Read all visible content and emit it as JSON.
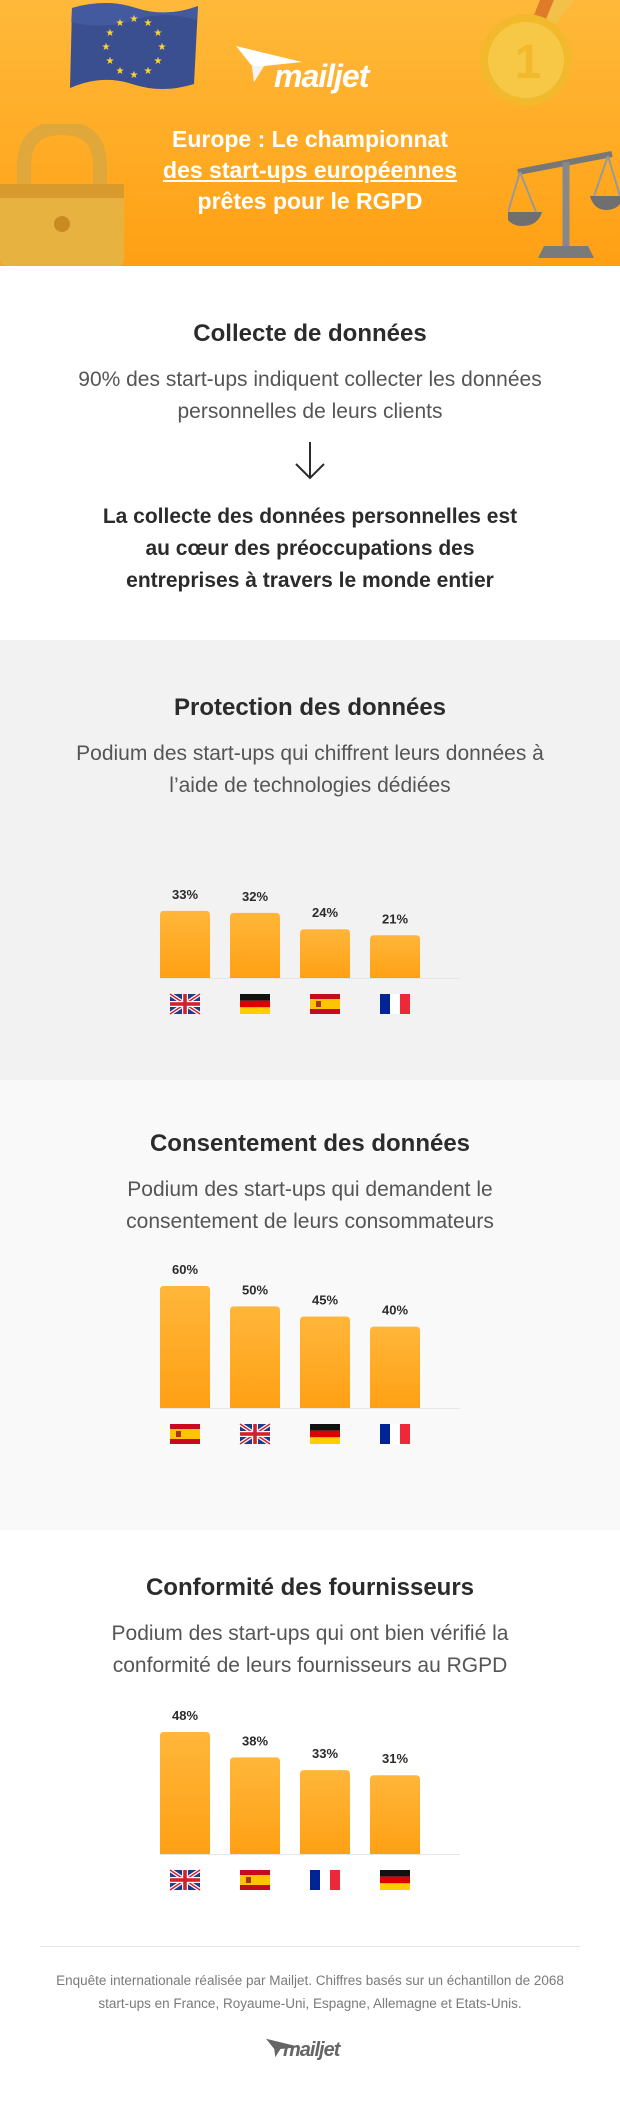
{
  "header": {
    "brand": "mailjet",
    "title_line1": "Europe : Le championnat",
    "title_line2": "des start-ups européennes",
    "title_line3": "prêtes pour le RGPD",
    "colors": {
      "bg_top": "#ffb93a",
      "bg_bottom": "#ffa014",
      "text": "#ffffff"
    },
    "icons": [
      "eu-flag-icon",
      "gold-medal-icon",
      "padlock-icon",
      "scales-icon"
    ]
  },
  "collecte": {
    "title": "Collecte de données",
    "subtitle": "90% des start-ups indiquent collecter les données personnelles de leurs clients",
    "conclusion": "La collecte des données personnelles est au cœur des préoccupations des entreprises à travers le monde entier"
  },
  "protection": {
    "title": "Protection des données",
    "subtitle": "Podium des start-ups qui chiffrent leurs données à l’aide de technologies dédiées"
  },
  "consentement": {
    "title": "Consentement des données",
    "subtitle": "Podium des start-ups qui demandent le consentement de leurs consommateurs"
  },
  "conformite": {
    "title": "Conformité des fournisseurs",
    "subtitle": "Podium des start-ups qui ont bien vérifié la conformité de leurs fournisseurs au RGPD"
  },
  "footer": {
    "note": "Enquête internationale réalisée par Mailjet. Chiffres basés sur un échantillon de 2068 start-ups en France, Royaume-Uni, Espagne, Allemagne et Etats-Unis.",
    "brand": "mailjet"
  },
  "chart_data": [
    {
      "type": "bar",
      "categories": [
        "UK",
        "DE",
        "ES",
        "FR"
      ],
      "category_icons": [
        "uk-flag-icon",
        "germany-flag-icon",
        "spain-flag-icon",
        "france-flag-icon"
      ],
      "values": [
        33,
        32,
        24,
        21
      ],
      "value_labels": [
        "33%",
        "32%",
        "24%",
        "21%"
      ],
      "ylim": [
        0,
        60
      ],
      "color": "#ffa014"
    },
    {
      "type": "bar",
      "categories": [
        "ES",
        "UK",
        "DE",
        "FR"
      ],
      "category_icons": [
        "spain-flag-icon",
        "uk-flag-icon",
        "germany-flag-icon",
        "france-flag-icon"
      ],
      "values": [
        60,
        50,
        45,
        40
      ],
      "value_labels": [
        "60%",
        "50%",
        "45%",
        "40%"
      ],
      "ylim": [
        0,
        60
      ],
      "color": "#ffa014"
    },
    {
      "type": "bar",
      "categories": [
        "UK",
        "ES",
        "FR",
        "DE"
      ],
      "category_icons": [
        "uk-flag-icon",
        "spain-flag-icon",
        "france-flag-icon",
        "germany-flag-icon"
      ],
      "values": [
        48,
        38,
        33,
        31
      ],
      "value_labels": [
        "48%",
        "38%",
        "33%",
        "31%"
      ],
      "ylim": [
        0,
        48
      ],
      "color": "#ffa014"
    }
  ]
}
